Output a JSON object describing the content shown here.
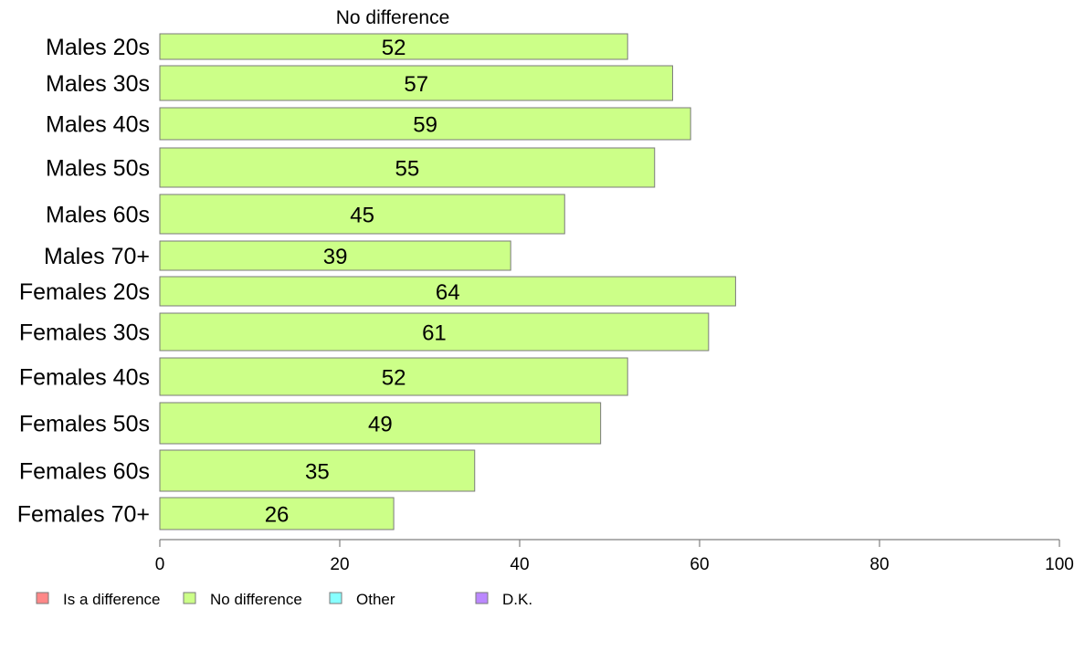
{
  "chart_data": {
    "type": "bar",
    "orientation": "horizontal",
    "series_title": "No difference",
    "categories": [
      "Males 20s",
      "Males 30s",
      "Males 40s",
      "Males 50s",
      "Males 60s",
      "Males 70+",
      "Females 20s",
      "Females 30s",
      "Females 40s",
      "Females 50s",
      "Females 60s",
      "Females 70+"
    ],
    "series": [
      {
        "name": "No difference",
        "color": "#ccff88",
        "values": [
          52,
          57,
          59,
          55,
          45,
          39,
          64,
          61,
          52,
          49,
          35,
          26
        ]
      }
    ],
    "xlim": [
      0,
      100
    ],
    "xticks": [
      0,
      20,
      40,
      60,
      80,
      100
    ],
    "grid": false,
    "legend": {
      "position": "bottom-left",
      "items": [
        {
          "label": "Is a difference",
          "color": "#ff8888"
        },
        {
          "label": "No difference",
          "color": "#ccff88"
        },
        {
          "label": "Other",
          "color": "#88ffff"
        },
        {
          "label": "D.K.",
          "color": "#bb88ff"
        }
      ]
    }
  }
}
